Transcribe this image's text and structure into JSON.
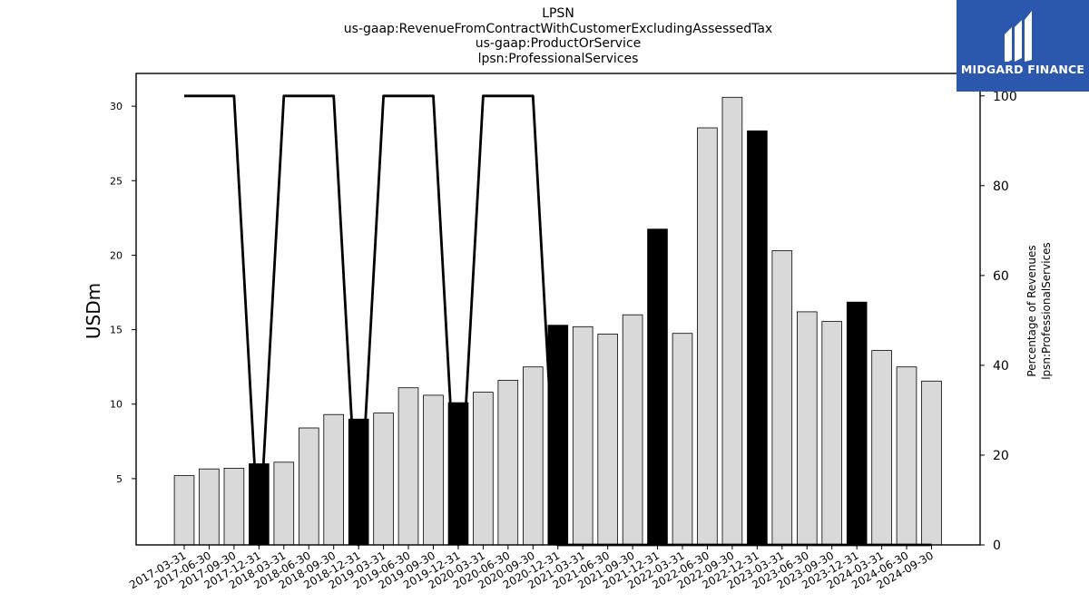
{
  "titles": [
    "LPSN",
    "us-gaap:RevenueFromContractWithCustomerExcludingAssessedTax",
    "us-gaap:ProductOrService",
    "lpsn:ProfessionalServices"
  ],
  "logo": {
    "text": "MIDGARD FINANCE",
    "background": "#2b58ad"
  },
  "chart_data": {
    "type": "bar",
    "categories": [
      "2017-03-31",
      "2017-06-30",
      "2017-09-30",
      "2017-12-31",
      "2018-03-31",
      "2018-06-30",
      "2018-09-30",
      "2018-12-31",
      "2019-03-31",
      "2019-06-30",
      "2019-09-30",
      "2019-12-31",
      "2020-03-31",
      "2020-06-30",
      "2020-09-30",
      "2020-12-31",
      "2021-03-31",
      "2021-06-30",
      "2021-09-30",
      "2021-12-31",
      "2022-03-31",
      "2022-06-30",
      "2022-09-30",
      "2022-12-31",
      "2023-03-31",
      "2023-06-30",
      "2023-09-30",
      "2023-12-31",
      "2024-03-31",
      "2024-06-30",
      "2024-09-30"
    ],
    "series": [
      {
        "axis": "left",
        "type": "bar",
        "values": [
          5.2,
          5.65,
          5.7,
          6.0,
          6.1,
          8.4,
          9.3,
          9.0,
          9.4,
          11.1,
          10.6,
          10.1,
          10.8,
          11.6,
          12.5,
          15.3,
          15.2,
          14.7,
          16.0,
          21.75,
          14.75,
          28.55,
          30.6,
          28.35,
          20.3,
          16.2,
          15.55,
          16.85,
          13.6,
          12.5,
          11.55
        ],
        "highlight": [
          false,
          false,
          false,
          true,
          false,
          false,
          false,
          true,
          false,
          false,
          false,
          true,
          false,
          false,
          false,
          true,
          false,
          false,
          false,
          true,
          false,
          false,
          false,
          true,
          false,
          false,
          false,
          true,
          false,
          false,
          false
        ],
        "color": "#d9d9d9",
        "highlight_color": "#000000"
      },
      {
        "axis": "right",
        "type": "line",
        "values": [
          100,
          100,
          100,
          0,
          100,
          100,
          100,
          0,
          100,
          100,
          100,
          0,
          100,
          100,
          100,
          0,
          0,
          0,
          0,
          0,
          0,
          0,
          0,
          0,
          0,
          0,
          0,
          0,
          0,
          0,
          0
        ],
        "color": "#000000"
      }
    ],
    "ylabel": "USDm",
    "y2label": [
      "Percentage of Revenues",
      "lpsn:ProfessionalServices"
    ],
    "ylim": [
      0.55,
      32.2
    ],
    "y2lim": [
      0,
      105
    ],
    "yticks": [
      5,
      10,
      15,
      20,
      25,
      30
    ],
    "y2ticks": [
      0,
      20,
      40,
      60,
      80,
      100
    ],
    "grid": false
  }
}
